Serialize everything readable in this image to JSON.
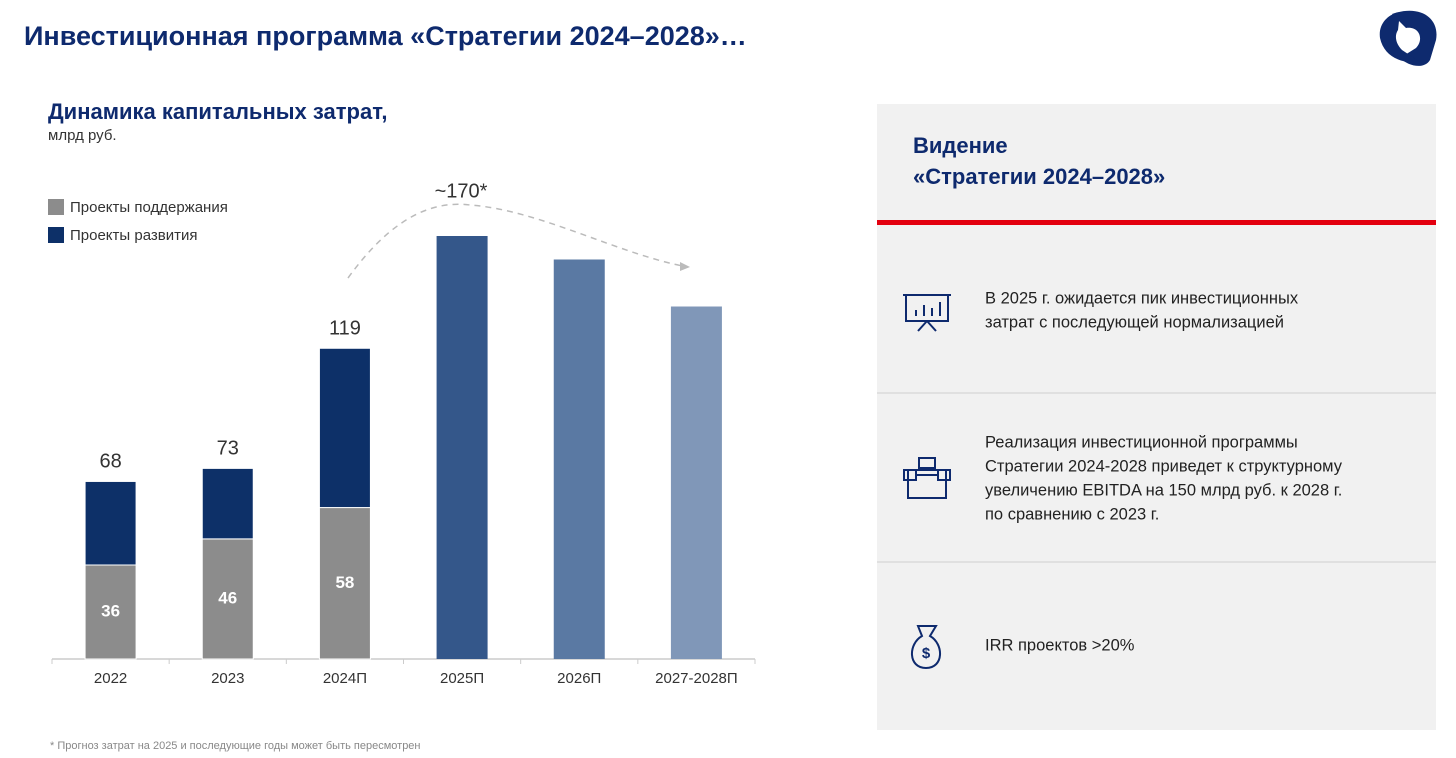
{
  "header": {
    "title": "Инвестиционная программа «Стратегии 2024–2028»…"
  },
  "chart_data": {
    "type": "stacked_bar",
    "title": "Динамика капитальных затрат,",
    "subtitle": "млрд руб.",
    "categories": [
      "2022",
      "2023",
      "2024П",
      "2025П",
      "2026П",
      "2027-2028П"
    ],
    "series": [
      {
        "name": "Проекты поддержания",
        "color": "#8c8c8c",
        "values": [
          36,
          46,
          58,
          null,
          null,
          null
        ],
        "data_labels": true
      },
      {
        "name": "Проекты развития",
        "color": "#0d3068",
        "values": [
          32,
          27,
          61,
          null,
          null,
          null
        ],
        "data_labels": false
      }
    ],
    "totals": [
      68,
      73,
      119,
      null,
      null,
      null
    ],
    "forecast_values": [
      null,
      null,
      null,
      162,
      153,
      135
    ],
    "forecast_colors": [
      null,
      null,
      null,
      "#34578a",
      "#5a79a3",
      "#8097b8"
    ],
    "annotation": "~170*",
    "ylim": [
      0,
      180
    ],
    "footnote": "* Прогноз затрат на 2025 и последующие годы может быть пересмотрен"
  },
  "panel": {
    "title_lines": [
      "Видение",
      "«Стратегии 2024–2028»"
    ],
    "items": [
      {
        "lines": [
          "В 2025 г. ожидается пик инвестиционных",
          "затрат с последующей нормализацией"
        ]
      },
      {
        "lines": [
          "Реализация инвестиционной программы",
          "Стратегии 2024-2028 приведет к структурному",
          "увеличению EBITDA на 150 млрд руб. к 2028 г.",
          "по сравнению с 2023 г."
        ]
      },
      {
        "lines": [
          "IRR проектов >20%"
        ]
      }
    ]
  }
}
